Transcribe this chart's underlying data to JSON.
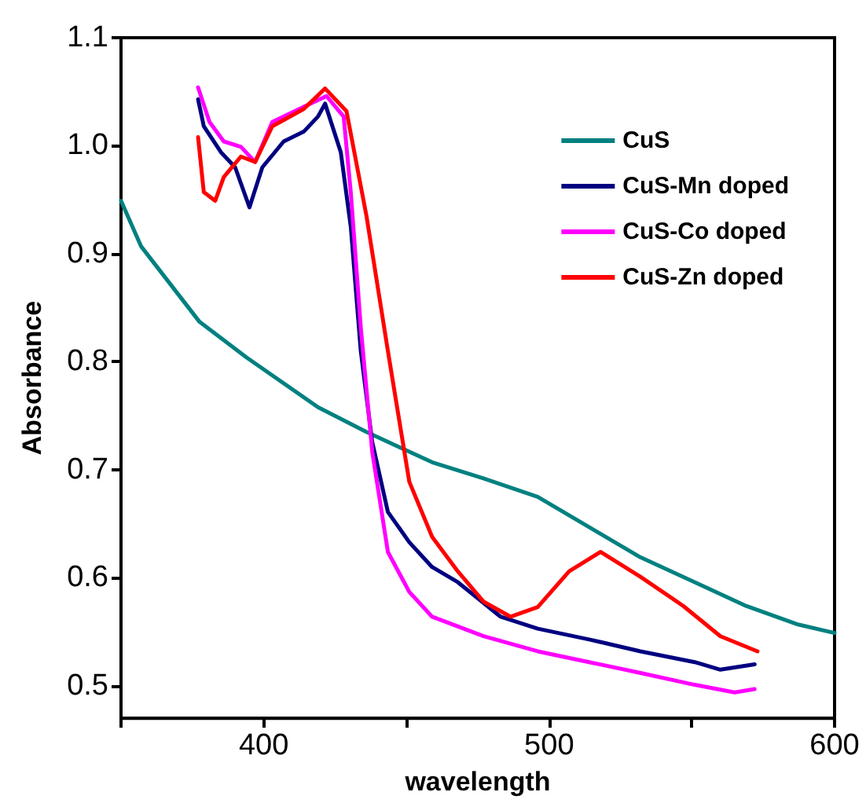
{
  "chart_data": {
    "type": "line",
    "xlabel": "wavelength",
    "ylabel": "Absorbance",
    "xlim": [
      350,
      600
    ],
    "xticks": [
      {
        "value": 350,
        "label": null
      },
      400,
      {
        "value": 450,
        "label": null
      },
      500,
      {
        "value": 550,
        "label": null
      },
      600
    ],
    "ylim": [
      0.47,
      1.1
    ],
    "yticks": [
      0.5,
      0.6,
      0.7,
      0.8,
      0.9,
      {
        "value": 1,
        "label": "1.0"
      },
      1.1
    ],
    "grid": false,
    "legend": "top right",
    "marker": "none",
    "line_style": "solid",
    "series": [
      {
        "name": "CuS",
        "color": "#008080",
        "x": [
          350,
          357,
          377.5,
          394,
          419,
          436,
          459,
          477,
          496,
          514,
          532,
          551,
          569,
          587,
          600
        ],
        "values": [
          0.949,
          0.907,
          0.837,
          0.804,
          0.758,
          0.735,
          0.707,
          0.692,
          0.675,
          0.647,
          0.619,
          0.596,
          0.574,
          0.557,
          0.549
        ]
      },
      {
        "name": "CuS-Mn doped",
        "color": "#000080",
        "x": [
          377,
          379,
          385,
          390,
          395,
          399.5,
          407,
          414,
          419,
          421.5,
          427,
          430.5,
          434,
          438,
          443.5,
          451,
          459,
          468,
          483,
          496,
          514,
          532,
          551,
          560,
          572
        ],
        "values": [
          1.043,
          1.018,
          0.994,
          0.98,
          0.943,
          0.98,
          1.004,
          1.013,
          1.027,
          1.039,
          0.994,
          0.925,
          0.81,
          0.726,
          0.661,
          0.633,
          0.61,
          0.596,
          0.564,
          0.553,
          0.543,
          0.532,
          0.522,
          0.515,
          0.52
        ]
      },
      {
        "name": "CuS-Co doped",
        "color": "#ff00ff",
        "x": [
          377,
          381,
          386,
          392,
          397,
          403,
          414,
          422,
          428,
          430.5,
          434,
          438,
          443.5,
          451,
          459,
          477,
          496,
          514,
          532,
          551,
          565,
          572
        ],
        "values": [
          1.054,
          1.022,
          1.004,
          0.999,
          0.985,
          1.022,
          1.036,
          1.046,
          1.027,
          0.957,
          0.832,
          0.717,
          0.624,
          0.587,
          0.564,
          0.546,
          0.532,
          0.522,
          0.512,
          0.501,
          0.494,
          0.497
        ]
      },
      {
        "name": "CuS-Zn doped",
        "color": "#ff0000",
        "x": [
          377,
          379,
          383,
          386,
          392,
          397,
          403,
          414,
          421.5,
          429,
          436,
          443.5,
          451,
          459,
          468,
          477,
          486.5,
          496,
          507,
          518,
          532,
          547,
          560,
          573
        ],
        "values": [
          1.008,
          0.957,
          0.949,
          0.971,
          0.99,
          0.985,
          1.018,
          1.034,
          1.053,
          1.032,
          0.935,
          0.81,
          0.689,
          0.638,
          0.606,
          0.578,
          0.564,
          0.573,
          0.606,
          0.624,
          0.601,
          0.574,
          0.546,
          0.532
        ]
      }
    ]
  }
}
